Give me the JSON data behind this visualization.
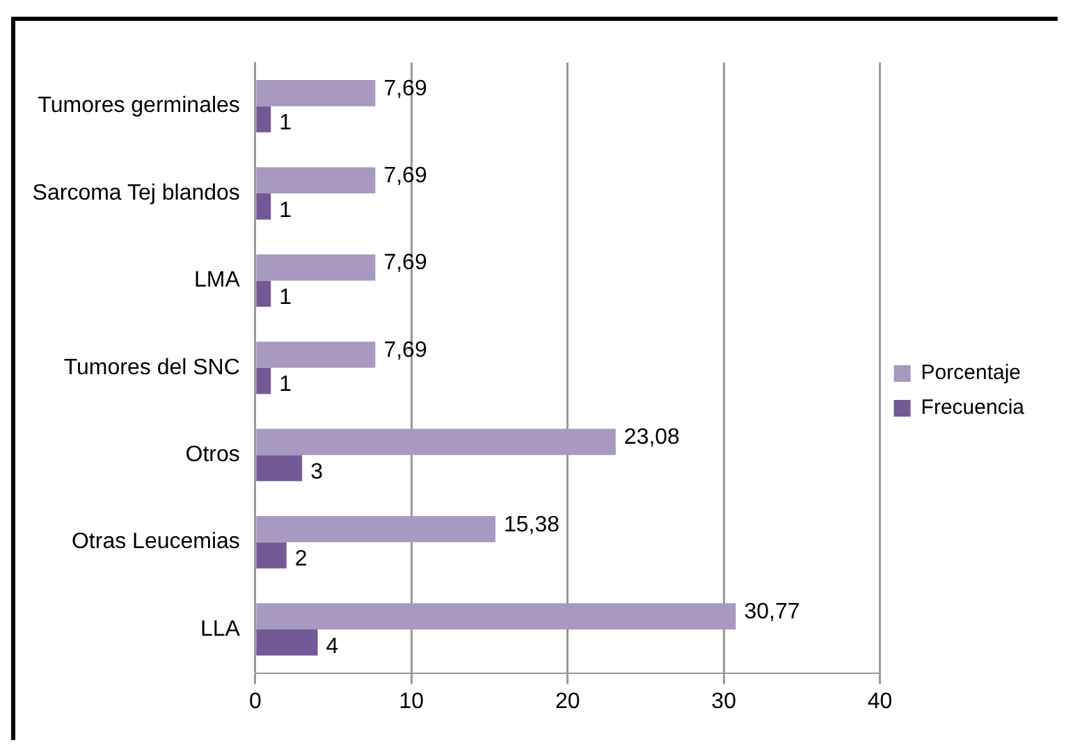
{
  "chart_data": {
    "type": "bar",
    "orientation": "horizontal",
    "categories": [
      "Tumores germinales",
      "Sarcoma Tej blandos",
      "LMA",
      "Tumores del SNC",
      "Otros",
      "Otras Leucemias",
      "LLA"
    ],
    "series": [
      {
        "name": "Porcentaje",
        "color": "#a899c0",
        "values": [
          7.69,
          7.69,
          7.69,
          7.69,
          23.08,
          15.38,
          30.77
        ],
        "value_labels": [
          "7,69",
          "7,69",
          "7,69",
          "7,69",
          "23,08",
          "15,38",
          "30,77"
        ]
      },
      {
        "name": "Frecuencia",
        "color": "#735a96",
        "values": [
          1,
          1,
          1,
          1,
          3,
          2,
          4
        ],
        "value_labels": [
          "1",
          "1",
          "1",
          "1",
          "3",
          "2",
          "4"
        ]
      }
    ],
    "xlim": [
      0,
      40
    ],
    "xticks": [
      0,
      10,
      20,
      30,
      40
    ],
    "grid": "x",
    "legend": "right"
  }
}
